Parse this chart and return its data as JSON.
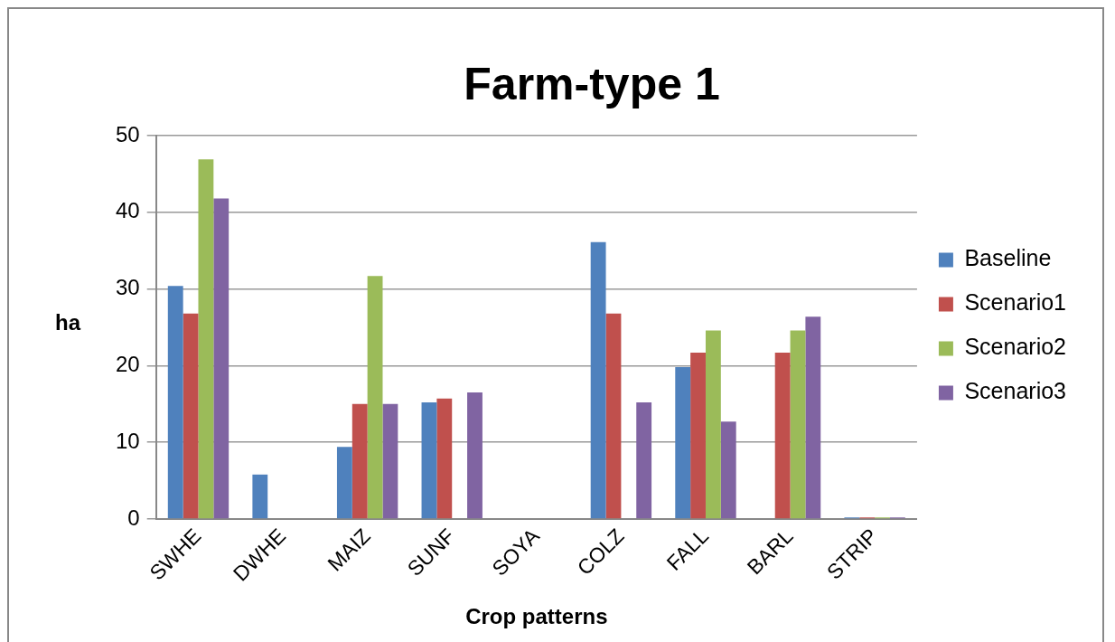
{
  "chart_data": {
    "type": "bar",
    "title": "Farm-type 1",
    "xlabel": "Crop patterns",
    "ylabel": "ha",
    "categories": [
      "SWHE",
      "DWHE",
      "MAIZ",
      "SUNF",
      "SOYA",
      "COLZ",
      "FALL",
      "BARL",
      "STRIP"
    ],
    "series": [
      {
        "name": "Baseline",
        "color": "#4f81bd",
        "values": [
          30.4,
          5.8,
          9.4,
          15.2,
          0,
          36.1,
          19.8,
          0,
          0.2
        ]
      },
      {
        "name": "Scenario1",
        "color": "#c0504d",
        "values": [
          26.8,
          0,
          15,
          15.7,
          0,
          26.8,
          21.7,
          21.7,
          0.2
        ]
      },
      {
        "name": "Scenario2",
        "color": "#9bbb59",
        "values": [
          46.9,
          0,
          31.7,
          0,
          0,
          0,
          24.6,
          24.6,
          0.2
        ]
      },
      {
        "name": "Scenario3",
        "color": "#8064a2",
        "values": [
          41.8,
          0,
          15,
          16.5,
          0,
          15.2,
          12.7,
          26.4,
          0.2
        ]
      }
    ],
    "ylim": [
      0,
      50
    ],
    "yticks": [
      0,
      10,
      20,
      30,
      40,
      50
    ],
    "grid": "y",
    "legend": "right"
  }
}
